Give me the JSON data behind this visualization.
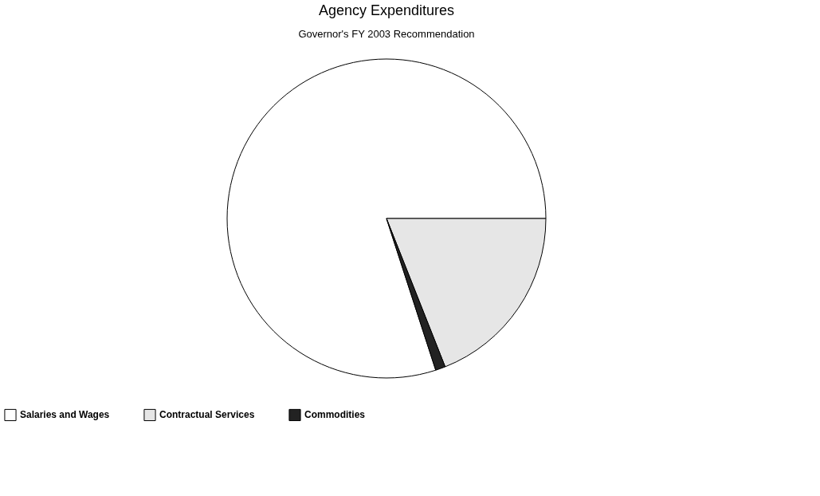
{
  "chart_data": {
    "type": "pie",
    "title": "Agency Expenditures",
    "subtitle": "Governor's FY 2003 Recommendation",
    "categories": [
      "Salaries and Wages",
      "Contractual Services",
      "Commodities"
    ],
    "values": [
      80,
      19,
      1
    ],
    "colors": [
      "#ffffff",
      "#e6e6e6",
      "#222222"
    ],
    "legend": "bottom"
  }
}
